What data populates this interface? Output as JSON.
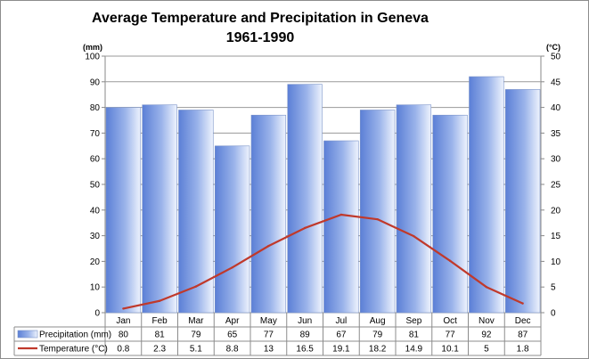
{
  "chart_data": {
    "type": "bar",
    "title": "Average Temperature and Precipitation in Geneva",
    "subtitle": "1961-1990",
    "categories": [
      "Jan",
      "Feb",
      "Mar",
      "Apr",
      "May",
      "Jun",
      "Jul",
      "Aug",
      "Sep",
      "Oct",
      "Nov",
      "Dec"
    ],
    "series": [
      {
        "name": "Precipitation (mm)",
        "type": "bar",
        "axis": "left",
        "values": [
          80,
          81,
          79,
          65,
          77,
          89,
          67,
          79,
          81,
          77,
          92,
          87
        ],
        "color": "#6f90d8"
      },
      {
        "name": "Temperature (°C)",
        "type": "line",
        "axis": "right",
        "values": [
          0.8,
          2.3,
          5.1,
          8.8,
          13,
          16.5,
          19.1,
          18.2,
          14.9,
          10.1,
          5,
          1.8
        ],
        "color": "#c0392b"
      }
    ],
    "y_left": {
      "label": "(mm)",
      "min": 0,
      "max": 100,
      "step": 10,
      "ticks": [
        "0",
        "10",
        "20",
        "30",
        "40",
        "50",
        "60",
        "70",
        "80",
        "90",
        "100"
      ]
    },
    "y_right": {
      "label": "(°C)",
      "min": 0,
      "max": 50,
      "step": 5,
      "ticks": [
        "0",
        "5",
        "10",
        "15",
        "20",
        "25",
        "30",
        "35",
        "40",
        "45",
        "50"
      ]
    },
    "data_table": {
      "rows": [
        {
          "label": "Precipitation (mm)",
          "cells": [
            "80",
            "81",
            "79",
            "65",
            "77",
            "89",
            "67",
            "79",
            "81",
            "77",
            "92",
            "87"
          ]
        },
        {
          "label": "Temperature (°C)",
          "cells": [
            "0.8",
            "2.3",
            "5.1",
            "8.8",
            "13",
            "16.5",
            "19.1",
            "18.2",
            "14.9",
            "10.1",
            "5",
            "1.8"
          ]
        }
      ]
    }
  }
}
